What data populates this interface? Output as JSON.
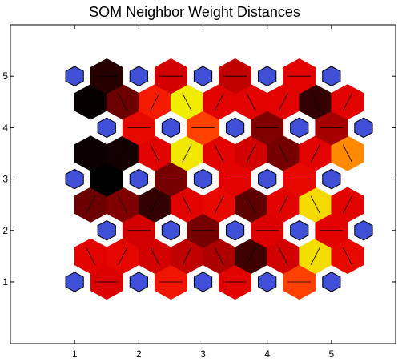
{
  "chart_data": {
    "type": "heatmap",
    "title": "SOM Neighbor Weight Distances",
    "xlabel": "",
    "ylabel": "",
    "xlim": [
      0,
      6
    ],
    "ylim": [
      -0.2,
      6
    ],
    "xticks": [
      "1",
      "2",
      "3",
      "4",
      "5"
    ],
    "yticks": [
      "1",
      "2",
      "3",
      "4",
      "5"
    ],
    "grid": false,
    "colors": {
      "neuron": "#3f4fd6",
      "edge": "#000000",
      "colormap": [
        "#000000",
        "#5a0000",
        "#a00000",
        "#e00000",
        "#ff2a00",
        "#ff6a00",
        "#ffb000",
        "#f0f000"
      ]
    },
    "neurons": [
      [
        1,
        1
      ],
      [
        2,
        1
      ],
      [
        3,
        1
      ],
      [
        4,
        1
      ],
      [
        5,
        1
      ],
      [
        1.5,
        2
      ],
      [
        2.5,
        2
      ],
      [
        3.5,
        2
      ],
      [
        4.5,
        2
      ],
      [
        5.5,
        2
      ],
      [
        1,
        3
      ],
      [
        2,
        3
      ],
      [
        3,
        3
      ],
      [
        4,
        3
      ],
      [
        5,
        3
      ],
      [
        1.5,
        4
      ],
      [
        2.5,
        4
      ],
      [
        3.5,
        4
      ],
      [
        4.5,
        4
      ],
      [
        5.5,
        4
      ],
      [
        1,
        5
      ],
      [
        2,
        5
      ],
      [
        3,
        5
      ],
      [
        4,
        5
      ],
      [
        5,
        5
      ]
    ],
    "distance_cells": [
      {
        "x": 1.5,
        "y": 1,
        "value": 0.42
      },
      {
        "x": 2.5,
        "y": 1,
        "value": 0.5
      },
      {
        "x": 3.5,
        "y": 1,
        "value": 0.44
      },
      {
        "x": 4.5,
        "y": 1,
        "value": 0.62
      },
      {
        "x": 1.25,
        "y": 1.5,
        "value": 0.44
      },
      {
        "x": 1.75,
        "y": 1.5,
        "value": 0.45
      },
      {
        "x": 2.25,
        "y": 1.5,
        "value": 0.4
      },
      {
        "x": 2.75,
        "y": 1.5,
        "value": 0.36
      },
      {
        "x": 3.25,
        "y": 1.5,
        "value": 0.32
      },
      {
        "x": 3.75,
        "y": 1.5,
        "value": 0.1
      },
      {
        "x": 4.25,
        "y": 1.5,
        "value": 0.4
      },
      {
        "x": 4.75,
        "y": 1.5,
        "value": 0.96
      },
      {
        "x": 5.25,
        "y": 1.5,
        "value": 0.46
      },
      {
        "x": 2,
        "y": 2,
        "value": 0.4
      },
      {
        "x": 3,
        "y": 2,
        "value": 0.2
      },
      {
        "x": 4,
        "y": 2,
        "value": 0.42
      },
      {
        "x": 5,
        "y": 2,
        "value": 0.44
      },
      {
        "x": 1.25,
        "y": 2.5,
        "value": 0.18
      },
      {
        "x": 1.75,
        "y": 2.5,
        "value": 0.22
      },
      {
        "x": 2.25,
        "y": 2.5,
        "value": 0.08
      },
      {
        "x": 2.75,
        "y": 2.5,
        "value": 0.44
      },
      {
        "x": 3.25,
        "y": 2.5,
        "value": 0.46
      },
      {
        "x": 3.75,
        "y": 2.5,
        "value": 0.15
      },
      {
        "x": 4.25,
        "y": 2.5,
        "value": 0.44
      },
      {
        "x": 4.75,
        "y": 2.5,
        "value": 0.95
      },
      {
        "x": 5.25,
        "y": 2.5,
        "value": 0.44
      },
      {
        "x": 1.5,
        "y": 3,
        "value": 0.0
      },
      {
        "x": 2.5,
        "y": 3,
        "value": 0.2
      },
      {
        "x": 3.5,
        "y": 3,
        "value": 0.44
      },
      {
        "x": 4.5,
        "y": 3,
        "value": 0.46
      },
      {
        "x": 1.25,
        "y": 3.5,
        "value": 0.02
      },
      {
        "x": 1.75,
        "y": 3.5,
        "value": 0.03
      },
      {
        "x": 2.25,
        "y": 3.5,
        "value": 0.44
      },
      {
        "x": 2.75,
        "y": 3.5,
        "value": 0.98
      },
      {
        "x": 3.25,
        "y": 3.5,
        "value": 0.44
      },
      {
        "x": 3.75,
        "y": 3.5,
        "value": 0.4
      },
      {
        "x": 4.25,
        "y": 3.5,
        "value": 0.2
      },
      {
        "x": 4.75,
        "y": 3.5,
        "value": 0.44
      },
      {
        "x": 5.25,
        "y": 3.5,
        "value": 0.78
      },
      {
        "x": 2,
        "y": 4,
        "value": 0.46
      },
      {
        "x": 3,
        "y": 4,
        "value": 0.62
      },
      {
        "x": 4,
        "y": 4,
        "value": 0.22
      },
      {
        "x": 5,
        "y": 4,
        "value": 0.3
      },
      {
        "x": 1.25,
        "y": 4.5,
        "value": 0.01
      },
      {
        "x": 1.75,
        "y": 4.5,
        "value": 0.18
      },
      {
        "x": 2.25,
        "y": 4.5,
        "value": 0.52
      },
      {
        "x": 2.75,
        "y": 4.5,
        "value": 0.99
      },
      {
        "x": 3.25,
        "y": 4.5,
        "value": 0.44
      },
      {
        "x": 3.75,
        "y": 4.5,
        "value": 0.44
      },
      {
        "x": 4.25,
        "y": 4.5,
        "value": 0.44
      },
      {
        "x": 4.75,
        "y": 4.5,
        "value": 0.08
      },
      {
        "x": 5.25,
        "y": 4.5,
        "value": 0.44
      },
      {
        "x": 1.5,
        "y": 5,
        "value": 0.06
      },
      {
        "x": 2.5,
        "y": 5,
        "value": 0.4
      },
      {
        "x": 3.5,
        "y": 5,
        "value": 0.36
      },
      {
        "x": 4.5,
        "y": 5,
        "value": 0.44
      }
    ]
  }
}
